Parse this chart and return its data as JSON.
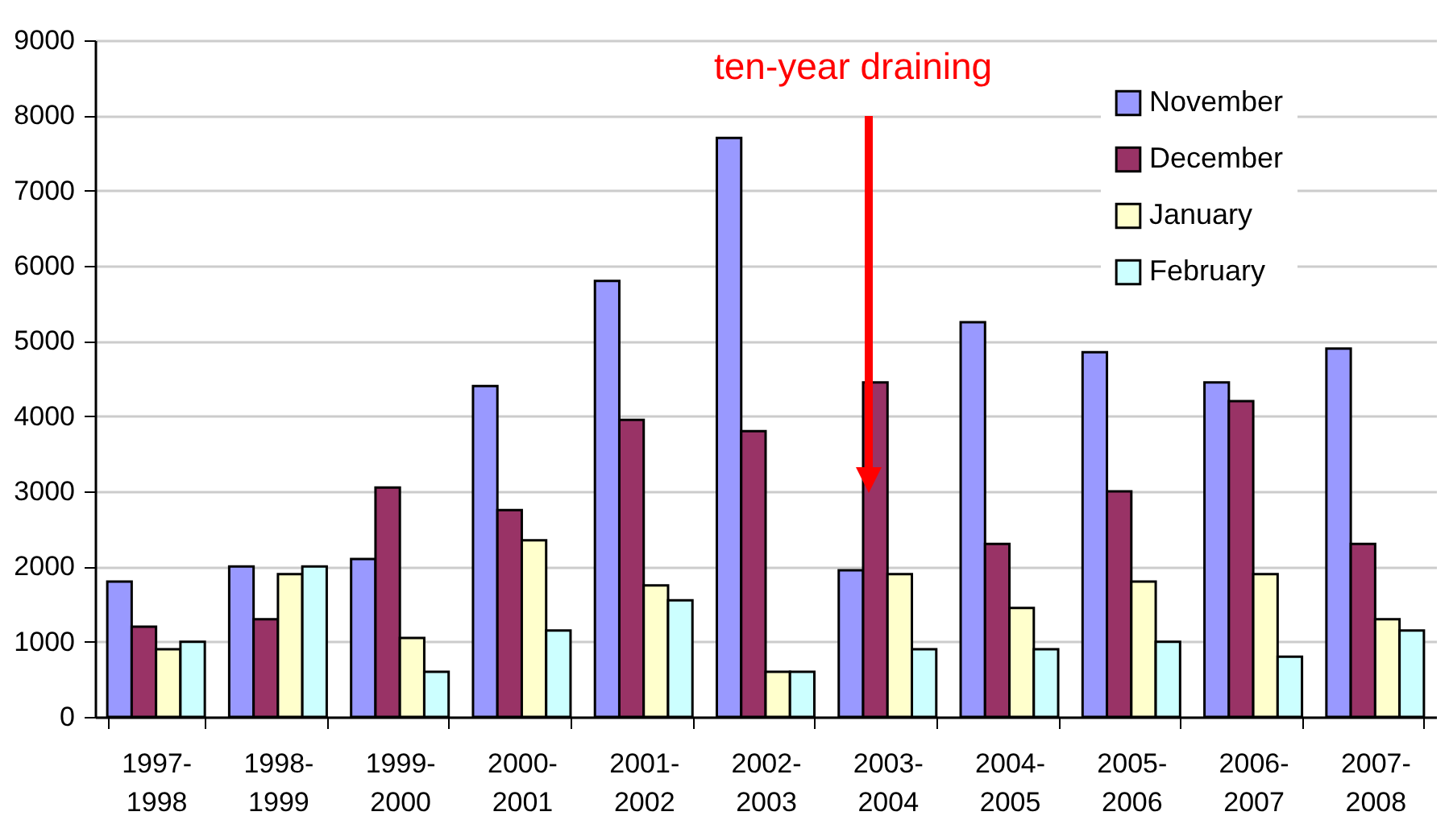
{
  "chart_data": {
    "type": "bar",
    "categories": [
      "1997-1998",
      "1998-1999",
      "1999-2000",
      "2000-2001",
      "2001-2002",
      "2002-2003",
      "2003-2004",
      "2004-2005",
      "2005-2006",
      "2006-2007",
      "2007-2008"
    ],
    "series": [
      {
        "name": "November",
        "color": "#9999ff",
        "values": [
          1800,
          2000,
          2100,
          4400,
          5800,
          7700,
          1950,
          5250,
          4850,
          4450,
          4900
        ]
      },
      {
        "name": "December",
        "color": "#993366",
        "values": [
          1200,
          1300,
          3050,
          2750,
          3950,
          3800,
          4450,
          2300,
          3000,
          4200,
          2300
        ]
      },
      {
        "name": "January",
        "color": "#ffffcc",
        "values": [
          900,
          1900,
          1050,
          2350,
          1750,
          600,
          1900,
          1450,
          1800,
          1900,
          1300
        ]
      },
      {
        "name": "February",
        "color": "#ccffff",
        "values": [
          1000,
          2000,
          600,
          1150,
          1550,
          600,
          900,
          900,
          1000,
          800,
          1150
        ]
      }
    ],
    "ylim": [
      0,
      9000
    ],
    "yticks": [
      0,
      1000,
      2000,
      3000,
      4000,
      5000,
      6000,
      7000,
      8000,
      9000
    ],
    "grid": "y",
    "legend": "top right",
    "annotations": [
      "ten-year draining"
    ]
  }
}
